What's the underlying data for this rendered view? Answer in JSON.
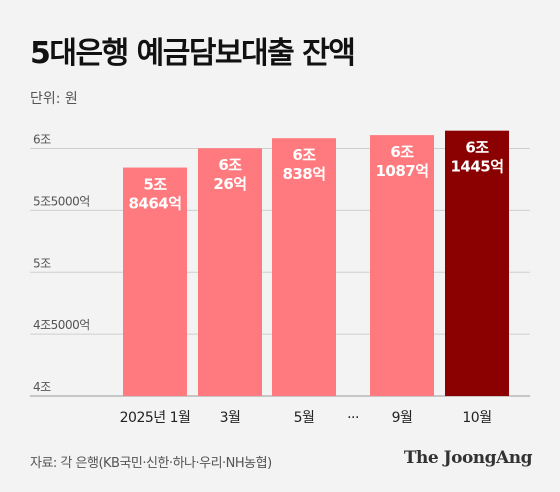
{
  "title": "5대은행 예금담보대출 잔액",
  "unit": "단위: 원",
  "source": "자료: 각 은행(KB국민·신한·하나·우리·NH농협)",
  "logo": "The JoongAng",
  "colors": {
    "bar": "#ff7a7e",
    "highlight": "#8b0000",
    "grid": "#cfcfcf"
  },
  "chart_data": {
    "type": "bar",
    "categories": [
      "2025년 1월",
      "3월",
      "5월",
      "9월",
      "10월"
    ],
    "gap_marker": "···",
    "values": [
      58464,
      60026,
      60838,
      61087,
      61445
    ],
    "value_labels": [
      [
        "5조",
        "8464억"
      ],
      [
        "6조",
        "26억"
      ],
      [
        "6조",
        "838억"
      ],
      [
        "6조",
        "1087억"
      ],
      [
        "6조",
        "1445억"
      ]
    ],
    "highlight_index": 4,
    "yticks": [
      {
        "value": 60000,
        "label": "6조"
      },
      {
        "value": 55000,
        "label": "5조5000억"
      },
      {
        "value": 50000,
        "label": "5조"
      },
      {
        "value": 45000,
        "label": "4조5000억"
      },
      {
        "value": 40000,
        "label": "4조"
      }
    ],
    "ylim": [
      40000,
      61500
    ],
    "grid": true,
    "title": "5대은행 예금담보대출 잔액",
    "ylabel": "단위: 원"
  }
}
